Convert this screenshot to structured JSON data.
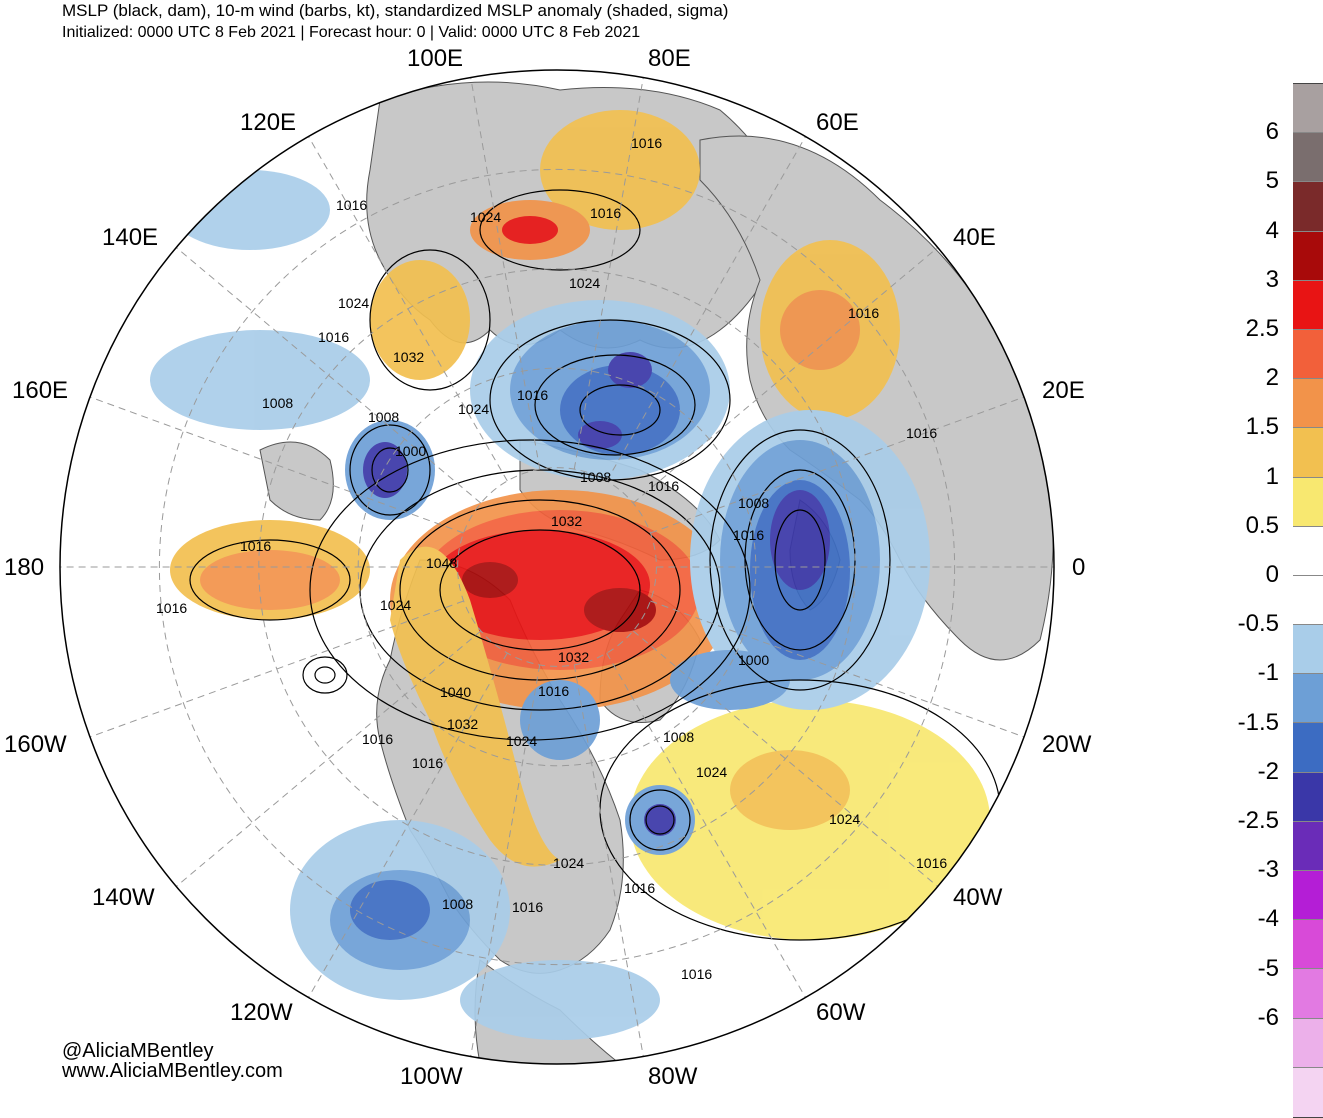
{
  "header": {
    "title": "MSLP (black, dam), 10-m wind (barbs, kt), standardized MSLP anomaly (shaded, sigma)",
    "subtitle": "Initialized: 0000 UTC 8 Feb 2021 | Forecast hour: 0 | Valid: 0000 UTC 8 Feb 2021"
  },
  "map": {
    "projection": "north polar stereographic",
    "longitude_labels": [
      "100E",
      "80E",
      "120E",
      "60E",
      "140E",
      "40E",
      "160E",
      "20E",
      "180",
      "0",
      "160W",
      "20W",
      "140W",
      "40W",
      "120W",
      "60W",
      "100W",
      "80W"
    ],
    "isobar_labels": [
      "1016",
      "1024",
      "1016",
      "1016",
      "1024",
      "1024",
      "1016",
      "1016",
      "1032",
      "1016",
      "1024",
      "1008",
      "1008",
      "1000",
      "1016",
      "1008",
      "1016",
      "1008",
      "1032",
      "1016",
      "1016",
      "1048",
      "1024",
      "1016",
      "1000",
      "1032",
      "1040",
      "1016",
      "1032",
      "1024",
      "1008",
      "1016",
      "1016",
      "1024",
      "1024",
      "1024",
      "1016",
      "1008",
      "1016",
      "1016",
      "1016"
    ],
    "colors": {
      "land": "#c8c8c8",
      "ocean": "#ffffff",
      "isobar": "#000000",
      "grid": "#9a9a9a"
    }
  },
  "colorbar": {
    "ticks": [
      "6",
      "5",
      "4",
      "3",
      "2.5",
      "2",
      "1.5",
      "1",
      "0.5",
      "0",
      "-0.5",
      "-1",
      "-1.5",
      "-2",
      "-2.5",
      "-3",
      "-4",
      "-5",
      "-6"
    ],
    "colors": [
      "#a8a0a0",
      "#7a6e6e",
      "#7a2a2a",
      "#a80a0a",
      "#e81414",
      "#f2603a",
      "#f2934a",
      "#f2c050",
      "#f8e870",
      "#ffffff",
      "#ffffff",
      "#a9cde9",
      "#6d9fd6",
      "#3c6cc2",
      "#3a37a8",
      "#6a2cb8",
      "#b41ed6",
      "#d84ad8",
      "#e27ae2",
      "#ecb0ea",
      "#f4d4f2"
    ]
  },
  "credits": {
    "handle": "@AliciaMBentley",
    "site": "www.AliciaMBentley.com"
  }
}
